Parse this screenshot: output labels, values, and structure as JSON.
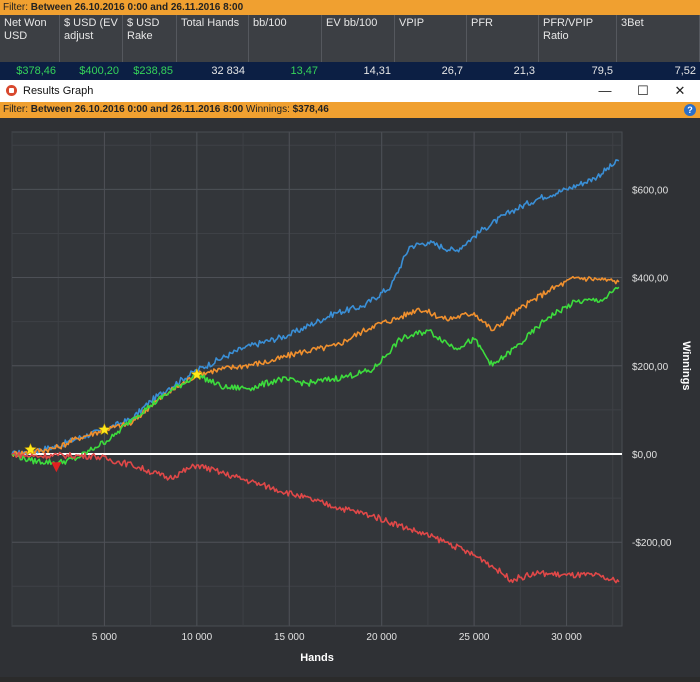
{
  "filter_top": {
    "prefix": "Filter: ",
    "value": "Between 26.10.2016 0:00 and 26.11.2016 8:00"
  },
  "stats": {
    "headers": [
      "Net Won USD",
      "$ USD (EV adjust",
      "$ USD Rake",
      "Total Hands",
      "bb/100",
      "EV bb/100",
      "VPIP",
      "PFR",
      "PFR/VPIP Ratio",
      "3Bet"
    ],
    "values": [
      "$378,46",
      "$400,20",
      "$238,85",
      "32 834",
      "13,47",
      "14,31",
      "26,7",
      "21,3",
      "79,5",
      "7,52"
    ],
    "value_colors": [
      "#35d35a",
      "#35d35a",
      "#35d35a",
      "#e6e6e6",
      "#35d35a",
      "#e6e6e6",
      "#e6e6e6",
      "#e6e6e6",
      "#e6e6e6",
      "#e6e6e6"
    ]
  },
  "window": {
    "title": "Results Graph",
    "minimize_icon": "minimize-icon",
    "maximize_icon": "maximize-icon",
    "close_icon": "close-icon"
  },
  "filter_graph": {
    "prefix": "Filter: ",
    "value": "Between 26.10.2016 0:00 and 26.11.2016 8:00",
    "winnings_label": " Winnings: ",
    "winnings_value": "$378,46",
    "help_icon": "help-icon"
  },
  "chart_data": {
    "type": "line",
    "xlabel": "Hands",
    "ylabel": "Winnings",
    "xlim": [
      0,
      33000
    ],
    "ylim": [
      -390,
      730
    ],
    "x_ticks": [
      5000,
      10000,
      15000,
      20000,
      25000,
      30000
    ],
    "x_tick_labels": [
      "5 000",
      "10 000",
      "15 000",
      "20 000",
      "25 000",
      "30 000"
    ],
    "y_ticks": [
      600,
      400,
      200,
      0,
      -200
    ],
    "y_tick_labels": [
      "$600,00",
      "$400,00",
      "$200,00",
      "$0,00",
      "-$200,00"
    ],
    "grid": true,
    "series": [
      {
        "color": "#3a8fd6",
        "x": [
          0,
          1000,
          2500,
          3500,
          5000,
          6500,
          7500,
          8500,
          10000,
          12500,
          15000,
          17500,
          19000,
          20500,
          21500,
          22500,
          24000,
          25500,
          27000,
          28500,
          30000,
          31500,
          32834
        ],
        "values": [
          0,
          5,
          18,
          35,
          55,
          80,
          120,
          150,
          190,
          240,
          270,
          320,
          335,
          380,
          470,
          480,
          460,
          510,
          550,
          580,
          600,
          625,
          665
        ]
      },
      {
        "color": "#f0902e",
        "x": [
          0,
          1000,
          2500,
          3500,
          5000,
          6500,
          7500,
          8500,
          10000,
          11000,
          12500,
          14000,
          15500,
          17500,
          19500,
          21000,
          22000,
          23500,
          25000,
          26000,
          27500,
          29000,
          30500,
          32000,
          32834
        ],
        "values": [
          0,
          4,
          15,
          35,
          55,
          70,
          110,
          140,
          180,
          190,
          200,
          210,
          230,
          245,
          290,
          310,
          330,
          305,
          320,
          280,
          330,
          370,
          400,
          395,
          390
        ]
      },
      {
        "color": "#3ddc3d",
        "x": [
          0,
          1000,
          2500,
          3500,
          4500,
          5500,
          6500,
          7500,
          8500,
          10000,
          11500,
          13000,
          14500,
          16000,
          18000,
          19500,
          21000,
          22500,
          24000,
          25000,
          26000,
          27500,
          29000,
          30500,
          32000,
          32834
        ],
        "values": [
          0,
          -15,
          -20,
          -10,
          15,
          40,
          80,
          110,
          140,
          180,
          150,
          150,
          170,
          160,
          175,
          190,
          260,
          280,
          240,
          260,
          200,
          250,
          310,
          345,
          350,
          378
        ]
      },
      {
        "color": "#e04848",
        "x": [
          0,
          1000,
          2500,
          4500,
          6500,
          8500,
          10000,
          11500,
          13500,
          15500,
          17500,
          19500,
          21500,
          23500,
          25500,
          27000,
          28500,
          30000,
          31500,
          32834
        ],
        "values": [
          0,
          -5,
          -3,
          -5,
          -25,
          -55,
          -25,
          -45,
          -70,
          -95,
          -120,
          -140,
          -170,
          -200,
          -240,
          -285,
          -270,
          -275,
          -275,
          -290
        ]
      }
    ],
    "zero_line_color": "#ffffff",
    "markers": [
      {
        "type": "star",
        "color": "#ffe81a",
        "x": 1000,
        "y": 10
      },
      {
        "type": "star",
        "color": "#ffe81a",
        "x": 5000,
        "y": 55
      },
      {
        "type": "star",
        "color": "#ffe81a",
        "x": 10000,
        "y": 180
      },
      {
        "type": "triangle-down",
        "color": "#e02020",
        "x": 2400,
        "y": -30
      }
    ]
  }
}
